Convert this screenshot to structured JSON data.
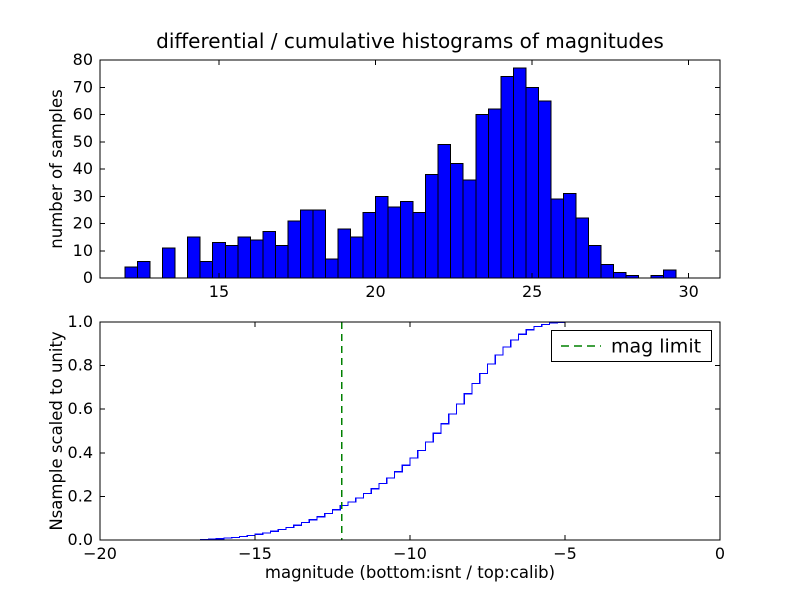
{
  "figure": {
    "title": "differential / cumulative histograms of magnitudes",
    "background": "#ffffff"
  },
  "chart_data": [
    {
      "type": "bar",
      "subplot": "top",
      "title": "differential / cumulative histograms of magnitudes",
      "xlabel": "",
      "ylabel": "number of samples",
      "xlim": [
        11.2,
        31.0
      ],
      "ylim": [
        0,
        80
      ],
      "xticks": [
        15,
        20,
        25,
        30
      ],
      "xtick_labels": [
        "15",
        "20",
        "25",
        "30"
      ],
      "yticks": [
        0,
        10,
        20,
        30,
        40,
        50,
        60,
        70,
        80
      ],
      "ytick_labels": [
        "0",
        "10",
        "20",
        "30",
        "40",
        "50",
        "60",
        "70",
        "80"
      ],
      "grid": false,
      "bin_start": 12.0,
      "bin_width": 0.4,
      "values": [
        4,
        6,
        0,
        11,
        0,
        15,
        6,
        13,
        12,
        15,
        14,
        17,
        12,
        21,
        25,
        25,
        7,
        18,
        15,
        24,
        30,
        26,
        28,
        24,
        38,
        49,
        42,
        36,
        60,
        62,
        74,
        77,
        70,
        65,
        29,
        31,
        22,
        12,
        5,
        2,
        1,
        0,
        1,
        3
      ],
      "bar_color": "#0000ff",
      "bar_edge_color": "#000000"
    },
    {
      "type": "line",
      "subplot": "bottom",
      "line_style": "steps",
      "xlabel": "magnitude (bottom:isnt / top:calib)",
      "ylabel": "Nsample scaled to unity",
      "xlim": [
        -20,
        0
      ],
      "ylim": [
        0.0,
        1.0
      ],
      "xticks": [
        -20,
        -15,
        -10,
        -5,
        0
      ],
      "xtick_labels": [
        "−20",
        "−15",
        "−10",
        "−5",
        "0"
      ],
      "yticks": [
        0.0,
        0.2,
        0.4,
        0.6,
        0.8,
        1.0
      ],
      "ytick_labels": [
        "0.0",
        "0.2",
        "0.4",
        "0.6",
        "0.8",
        "1.0"
      ],
      "grid": false,
      "x": [
        -17,
        -16.75,
        -16.5,
        -16.25,
        -16,
        -15.75,
        -15.5,
        -15.25,
        -15,
        -14.75,
        -14.5,
        -14.25,
        -14,
        -13.75,
        -13.5,
        -13.25,
        -13,
        -12.75,
        -12.5,
        -12.25,
        -12,
        -11.75,
        -11.5,
        -11.25,
        -11,
        -10.75,
        -10.5,
        -10.25,
        -10,
        -9.75,
        -9.5,
        -9.25,
        -9,
        -8.75,
        -8.5,
        -8.25,
        -8,
        -7.75,
        -7.5,
        -7.25,
        -7,
        -6.75,
        -6.5,
        -6.25,
        -6,
        -5.75,
        -5.5,
        -5.25,
        -5
      ],
      "y": [
        0,
        0.002,
        0.004,
        0.006,
        0.009,
        0.012,
        0.016,
        0.02,
        0.026,
        0.032,
        0.04,
        0.048,
        0.058,
        0.068,
        0.08,
        0.093,
        0.107,
        0.122,
        0.139,
        0.158,
        0.175,
        0.193,
        0.213,
        0.235,
        0.259,
        0.285,
        0.313,
        0.343,
        0.376,
        0.411,
        0.449,
        0.49,
        0.533,
        0.578,
        0.624,
        0.671,
        0.718,
        0.764,
        0.808,
        0.849,
        0.886,
        0.918,
        0.944,
        0.964,
        0.979,
        0.989,
        0.996,
        0.999,
        1.0
      ],
      "line_color": "#0000ff",
      "mag_limit": {
        "x": -12.2,
        "color": "#008000",
        "style": "dashed",
        "label": "mag limit"
      },
      "legend": {
        "position": "upper right",
        "entries": [
          {
            "label": "mag limit",
            "color": "#008000",
            "style": "dashed"
          }
        ]
      }
    }
  ]
}
